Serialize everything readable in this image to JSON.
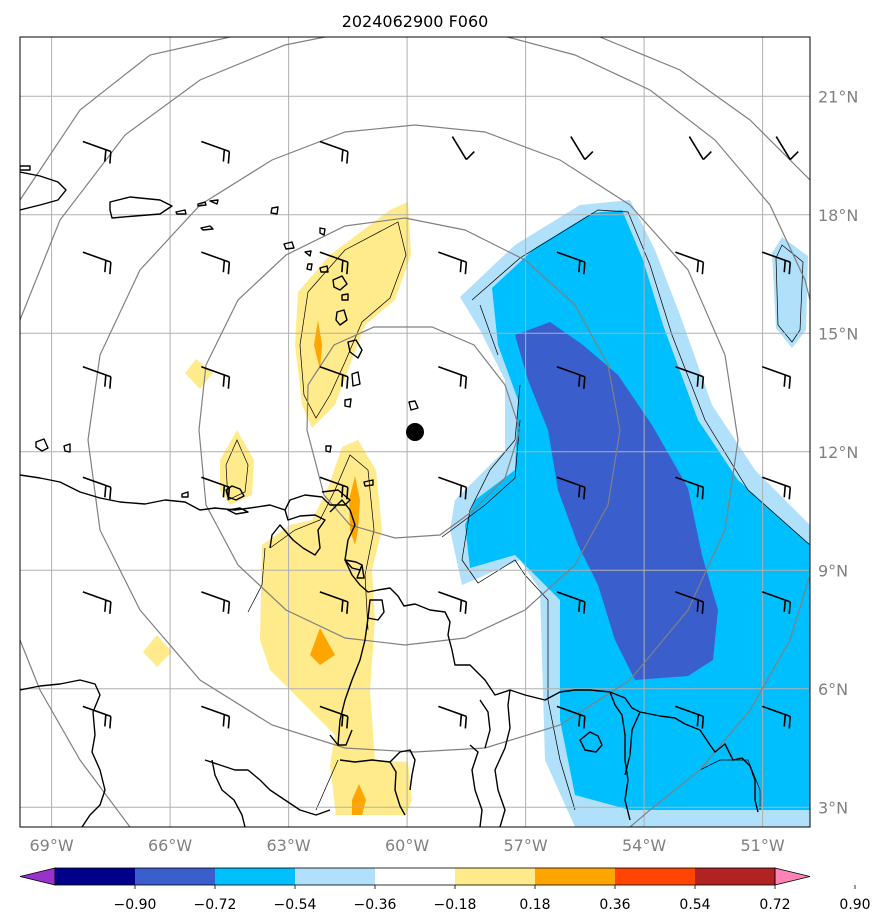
{
  "title": "2024062900 F060",
  "map": {
    "lon_range": [
      -69.8,
      -49.8
    ],
    "lat_range": [
      2.5,
      22.5
    ],
    "lon_ticks": [
      {
        "value": -69,
        "label": "69°W"
      },
      {
        "value": -66,
        "label": "66°W"
      },
      {
        "value": -63,
        "label": "63°W"
      },
      {
        "value": -60,
        "label": "60°W"
      },
      {
        "value": -57,
        "label": "57°W"
      },
      {
        "value": -54,
        "label": "54°W"
      },
      {
        "value": -51,
        "label": "51°W"
      }
    ],
    "lat_ticks": [
      {
        "value": 3,
        "label": "3°N"
      },
      {
        "value": 6,
        "label": "6°N"
      },
      {
        "value": 9,
        "label": "9°N"
      },
      {
        "value": 12,
        "label": "12°N"
      },
      {
        "value": 15,
        "label": "15°N"
      },
      {
        "value": 18,
        "label": "18°N"
      },
      {
        "value": 21,
        "label": "21°N"
      }
    ],
    "grid": true,
    "storm_center": {
      "lon": -59.4,
      "lat": 12.55
    },
    "range_rings_deg": [
      2,
      4,
      6,
      8,
      10
    ],
    "colors": {
      "grid": "#b0b0b0",
      "rings": "#808080",
      "coast": "#000000",
      "tick_label": "#808080",
      "neg_strong": "#3a5fcd",
      "neg_mid": "#00bfff",
      "neg_weak": "#b0e0fa",
      "pos_weak": "#ffeb8c",
      "pos_mid": "#ffa500"
    }
  },
  "colorbar": {
    "colors": [
      "#9932cc",
      "#00008b",
      "#3a5fcd",
      "#00bfff",
      "#b0e0fa",
      "#ffffff",
      "#ffeb8c",
      "#ffa500",
      "#ff4500",
      "#b22222",
      "#ff83b4"
    ],
    "labels": [
      "−0.90",
      "−0.72",
      "−0.54",
      "−0.36",
      "−0.18",
      "0.18",
      "0.36",
      "0.54",
      "0.72",
      "0.90"
    ]
  }
}
